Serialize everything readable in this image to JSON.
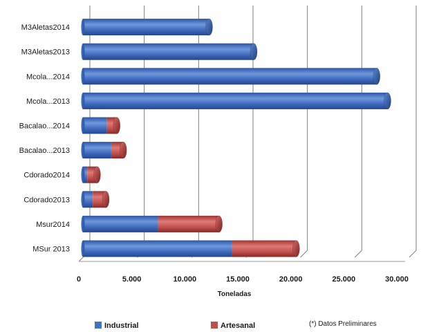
{
  "chart_data": {
    "type": "bar",
    "orientation": "horizontal",
    "stacked": true,
    "style": "3d-cylinder",
    "categories": [
      "MSur 2013",
      "Msur2014",
      "Cdorado2013",
      "Cdorado2014",
      "Bacalao...2013",
      "Bacalao...2014",
      "Mcola...2013",
      "Mcola...2014",
      "M3Aletas2013",
      "M3Aletas2014"
    ],
    "series": [
      {
        "name": "Industrial",
        "values": [
          13700,
          6900,
          900,
          400,
          2600,
          2200,
          28000,
          27000,
          15700,
          11600
        ]
      },
      {
        "name": "Artesanal",
        "values": [
          5900,
          5600,
          1200,
          900,
          1100,
          900,
          0,
          0,
          0,
          0
        ]
      }
    ],
    "xlabel": "Toneladas",
    "xlim": [
      0,
      30000
    ],
    "ticks": [
      "0",
      "5.000",
      "10.000",
      "15.000",
      "20.000",
      "25.000",
      "30.000"
    ],
    "tick_values": [
      0,
      5000,
      10000,
      15000,
      20000,
      25000,
      30000
    ],
    "grid": true,
    "legend_position": "bottom",
    "note": "(*) Datos Preliminares",
    "colors": {
      "Industrial": "#4472c4",
      "Artesanal": "#c0504d"
    }
  }
}
